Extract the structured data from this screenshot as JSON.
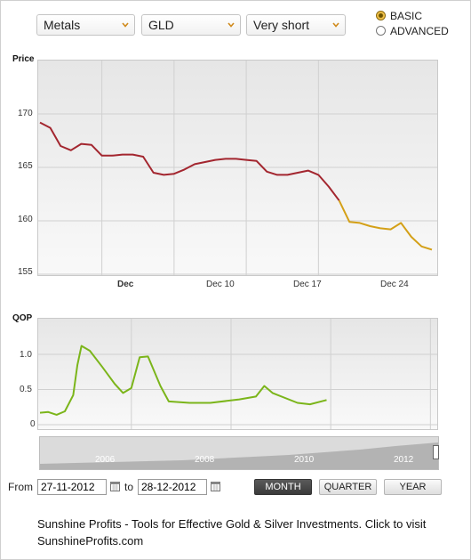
{
  "selectors": {
    "category": "Metals",
    "symbol": "GLD",
    "period": "Very short"
  },
  "mode": {
    "basic_label": "BASIC",
    "advanced_label": "ADVANCED",
    "selected": "BASIC"
  },
  "price_chart": {
    "ylabel": "Price",
    "y_ticks": [
      "170",
      "165",
      "160",
      "155"
    ],
    "x_ticks": [
      "Dec",
      "Dec 10",
      "Dec 17",
      "Dec 24"
    ]
  },
  "qop_chart": {
    "ylabel": "QOP",
    "y_ticks": [
      "1.0",
      "0.5",
      "0"
    ]
  },
  "navigator": {
    "labels": [
      "2006",
      "2008",
      "2010",
      "2012"
    ]
  },
  "range": {
    "from_label": "From",
    "from_value": "27-11-2012",
    "to_label": "to",
    "to_value": "28-12-2012"
  },
  "buttons": {
    "month": "MONTH",
    "quarter": "QUARTER",
    "year": "YEAR"
  },
  "footer": {
    "line1": "Sunshine Profits - Tools for Effective Gold & Silver Investments. Click to visit",
    "line2": "SunshineProfits.com"
  },
  "colors": {
    "price_line": "#a3262f",
    "price_forecast": "#d4a017",
    "qop_line": "#7bb51a"
  },
  "chart_data": [
    {
      "type": "line",
      "title": "",
      "ylabel": "Price",
      "ylim": [
        155,
        170
      ],
      "x_ticks": [
        "Dec",
        "Dec 10",
        "Dec 17",
        "Dec 24"
      ],
      "series": [
        {
          "values": [
            {
              "x": "2012-11-27",
              "y": 169.2
            },
            {
              "x": "2012-11-28",
              "y": 168.7
            },
            {
              "x": "2012-11-29",
              "y": 167.0
            },
            {
              "x": "2012-11-30",
              "y": 166.6
            },
            {
              "x": "2012-12-01",
              "y": 167.2
            },
            {
              "x": "2012-12-02",
              "y": 167.1
            },
            {
              "x": "2012-12-03",
              "y": 166.1
            },
            {
              "x": "2012-12-04",
              "y": 166.1
            },
            {
              "x": "2012-12-05",
              "y": 166.2
            },
            {
              "x": "2012-12-06",
              "y": 166.2
            },
            {
              "x": "2012-12-07",
              "y": 166.0
            },
            {
              "x": "2012-12-08",
              "y": 164.5
            },
            {
              "x": "2012-12-09",
              "y": 164.3
            },
            {
              "x": "2012-12-10",
              "y": 164.4
            },
            {
              "x": "2012-12-11",
              "y": 164.8
            },
            {
              "x": "2012-12-12",
              "y": 165.3
            },
            {
              "x": "2012-12-13",
              "y": 165.5
            },
            {
              "x": "2012-12-14",
              "y": 165.7
            },
            {
              "x": "2012-12-15",
              "y": 165.8
            },
            {
              "x": "2012-12-16",
              "y": 165.8
            },
            {
              "x": "2012-12-17",
              "y": 165.7
            },
            {
              "x": "2012-12-18",
              "y": 165.6
            },
            {
              "x": "2012-12-19",
              "y": 164.6
            },
            {
              "x": "2012-12-20",
              "y": 164.3
            },
            {
              "x": "2012-12-21",
              "y": 164.3
            },
            {
              "x": "2012-12-22",
              "y": 164.5
            },
            {
              "x": "2012-12-23",
              "y": 164.7
            },
            {
              "x": "2012-12-24",
              "y": 164.3
            },
            {
              "x": "2012-12-25",
              "y": 163.2
            },
            {
              "x": "2012-12-26",
              "y": 161.9
            }
          ]
        },
        {
          "values": [
            {
              "x": "2012-12-26",
              "y": 161.9
            },
            {
              "x": "2012-12-27",
              "y": 159.9
            },
            {
              "x": "2012-12-28",
              "y": 159.8
            },
            {
              "x": "2012-12-29",
              "y": 159.5
            },
            {
              "x": "2012-12-30",
              "y": 159.3
            },
            {
              "x": "2012-12-31",
              "y": 159.2
            },
            {
              "x": "2013-01-01",
              "y": 159.8
            },
            {
              "x": "2013-01-02",
              "y": 158.5
            },
            {
              "x": "2013-01-03",
              "y": 157.6
            },
            {
              "x": "2013-01-04",
              "y": 157.3
            }
          ]
        }
      ]
    },
    {
      "type": "line",
      "title": "",
      "ylabel": "QOP",
      "ylim": [
        0,
        1.2
      ],
      "series": [
        {
          "values": [
            {
              "x": "2005-01",
              "y": 0.17
            },
            {
              "x": "2005-03",
              "y": 0.18
            },
            {
              "x": "2005-05",
              "y": 0.14
            },
            {
              "x": "2005-07",
              "y": 0.19
            },
            {
              "x": "2005-09",
              "y": 0.42
            },
            {
              "x": "2005-10",
              "y": 0.85
            },
            {
              "x": "2005-11",
              "y": 1.12
            },
            {
              "x": "2006-01",
              "y": 1.05
            },
            {
              "x": "2006-04",
              "y": 0.82
            },
            {
              "x": "2006-07",
              "y": 0.58
            },
            {
              "x": "2006-09",
              "y": 0.45
            },
            {
              "x": "2006-11",
              "y": 0.52
            },
            {
              "x": "2007-01",
              "y": 0.96
            },
            {
              "x": "2007-03",
              "y": 0.97
            },
            {
              "x": "2007-06",
              "y": 0.55
            },
            {
              "x": "2007-08",
              "y": 0.33
            },
            {
              "x": "2008-01",
              "y": 0.31
            },
            {
              "x": "2008-06",
              "y": 0.31
            },
            {
              "x": "2009-01",
              "y": 0.36
            },
            {
              "x": "2009-05",
              "y": 0.4
            },
            {
              "x": "2009-07",
              "y": 0.55
            },
            {
              "x": "2009-09",
              "y": 0.45
            },
            {
              "x": "2010-03",
              "y": 0.31
            },
            {
              "x": "2010-06",
              "y": 0.29
            },
            {
              "x": "2010-10",
              "y": 0.35
            }
          ]
        }
      ]
    }
  ]
}
